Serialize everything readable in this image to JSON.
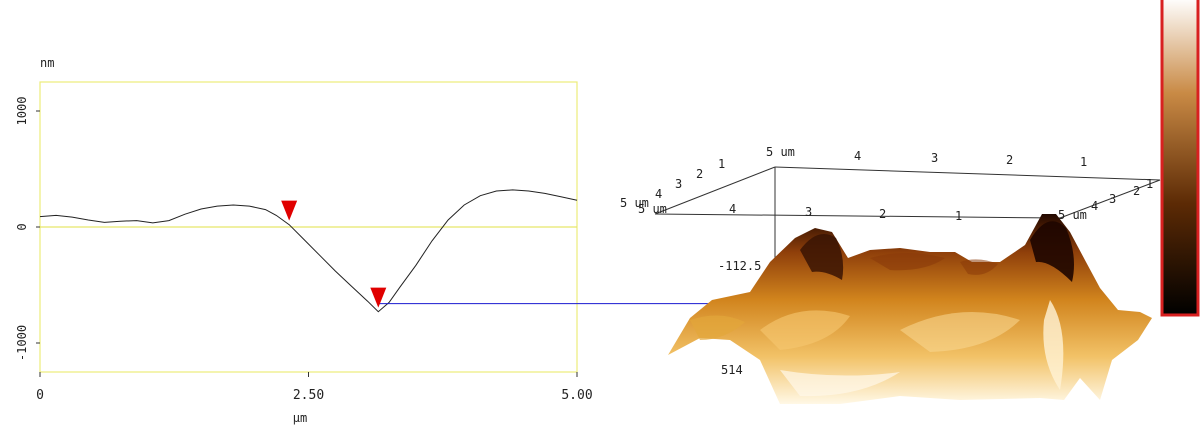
{
  "chart_data": [
    {
      "type": "line",
      "ylabel": "nm",
      "xlabel": "µm",
      "xlim": [
        0,
        5.0
      ],
      "ylim": [
        -1250,
        1250
      ],
      "x_ticks": [
        "0",
        "2.50",
        "5.00"
      ],
      "y_ticks": [
        "1000",
        "0",
        "-1000"
      ],
      "x_tick_values": [
        0,
        2.5,
        5.0
      ],
      "y_tick_values": [
        1000,
        0,
        -1000
      ],
      "zero_line": 0,
      "series": [
        {
          "x": [
            0,
            0.15,
            0.3,
            0.45,
            0.6,
            0.75,
            0.9,
            1.05,
            1.2,
            1.35,
            1.5,
            1.65,
            1.8,
            1.95,
            2.1,
            2.2,
            2.32,
            2.45,
            2.6,
            2.75,
            2.9,
            3.05,
            3.15,
            3.25,
            3.35,
            3.5,
            3.65,
            3.8,
            3.95,
            4.1,
            4.25,
            4.4,
            4.55,
            4.7,
            4.85,
            5.0
          ],
          "y": [
            90,
            100,
            85,
            60,
            40,
            50,
            55,
            35,
            55,
            110,
            155,
            180,
            190,
            180,
            150,
            100,
            20,
            -100,
            -240,
            -380,
            -510,
            -640,
            -730,
            -650,
            -520,
            -330,
            -120,
            60,
            190,
            270,
            310,
            320,
            310,
            290,
            260,
            230
          ]
        }
      ],
      "markers": [
        {
          "x": 2.32,
          "y": 20
        },
        {
          "x": 3.15,
          "y": -730
        }
      ]
    },
    {
      "type": "surface",
      "x_ticks_top": [
        "5 um",
        "4",
        "3",
        "2",
        "1"
      ],
      "left_ticks": [
        "5 um",
        "4",
        "3",
        "2",
        "1"
      ],
      "front_ticks": [
        "5 um",
        "4",
        "3",
        "2",
        "1"
      ],
      "right_ticks": [
        "5 um",
        "4",
        "3",
        "2",
        "1"
      ],
      "z_labels": [
        "-112.5",
        "514"
      ]
    }
  ]
}
